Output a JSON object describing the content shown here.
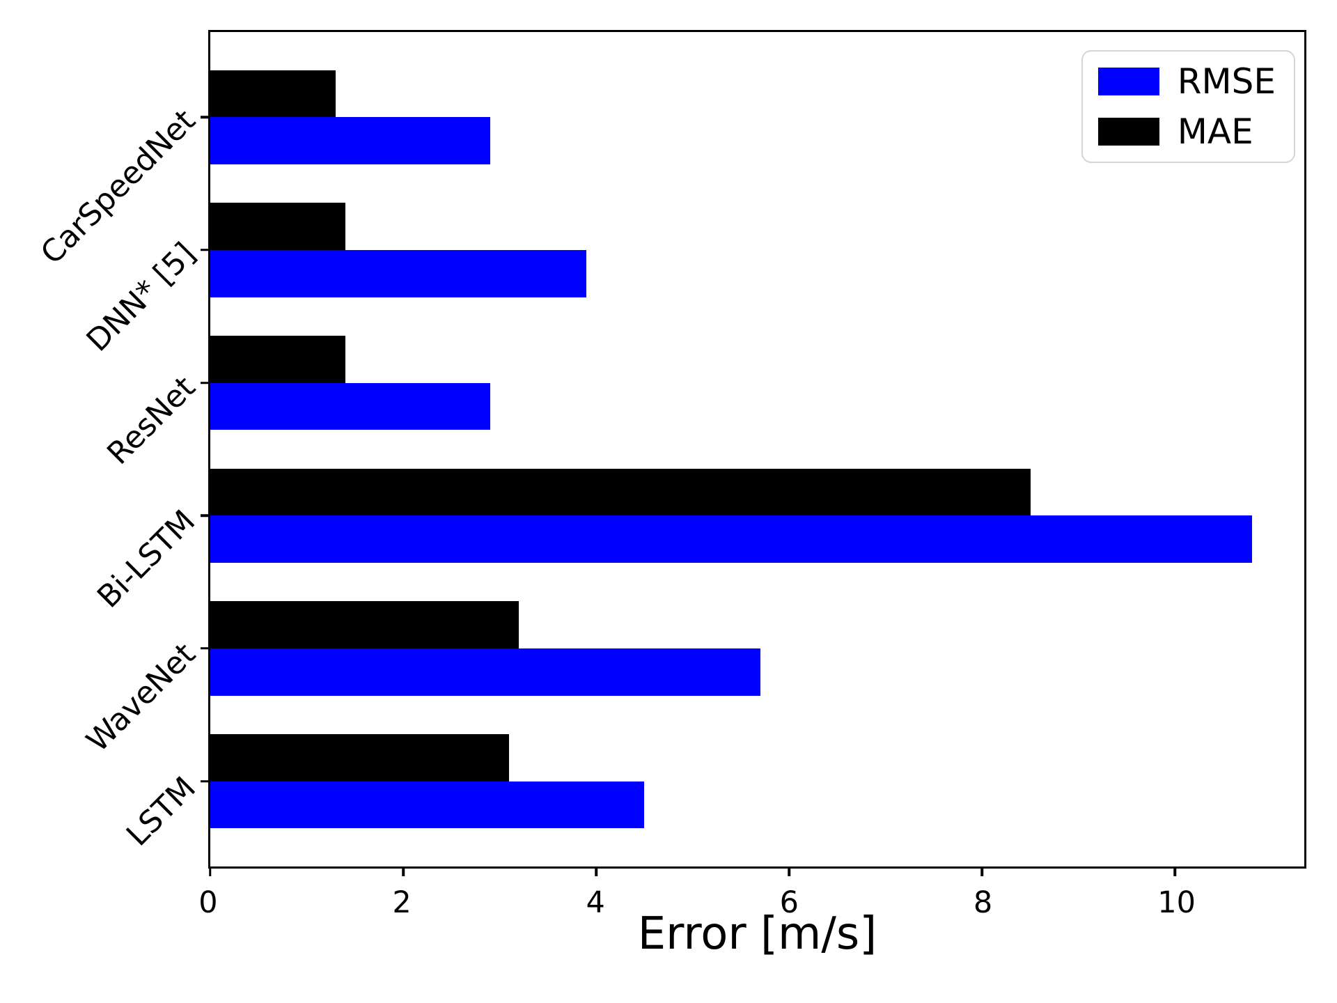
{
  "chart_data": {
    "type": "bar",
    "orientation": "horizontal",
    "title": "",
    "xlabel": "Error [m/s]",
    "ylabel": "",
    "categories": [
      "CarSpeedNet",
      "DNN* [5]",
      "ResNet",
      "Bi-LSTM",
      "WaveNet",
      "LSTM"
    ],
    "series": [
      {
        "name": "RMSE",
        "color": "#0000ff",
        "values": [
          2.9,
          3.9,
          2.9,
          10.8,
          5.7,
          4.5
        ]
      },
      {
        "name": "MAE",
        "color": "#000000",
        "values": [
          1.3,
          1.4,
          1.4,
          8.5,
          3.2,
          3.1
        ]
      }
    ],
    "xlim": [
      0,
      11.34
    ],
    "xticks": [
      0,
      2,
      4,
      6,
      8,
      10
    ],
    "grid": false,
    "legend": {
      "position": "upper-right",
      "order": [
        "RMSE",
        "MAE"
      ]
    }
  }
}
